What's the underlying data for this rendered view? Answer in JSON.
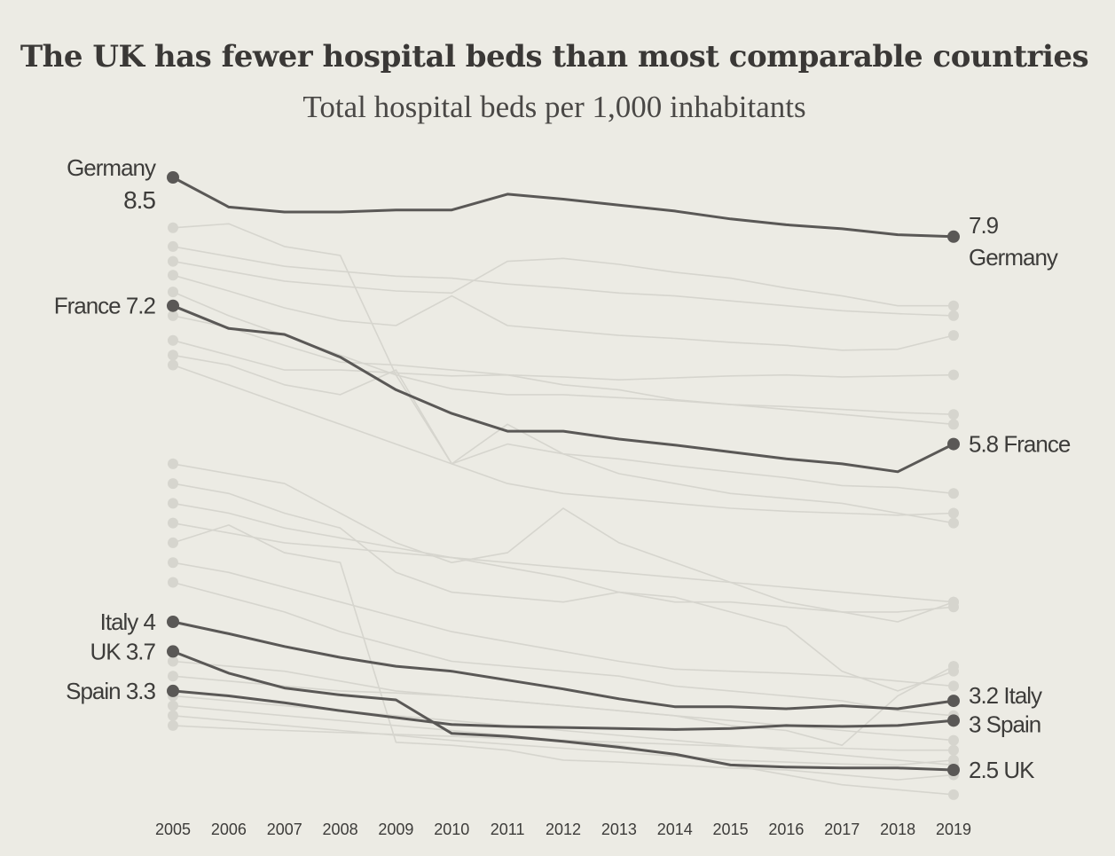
{
  "chart_data": {
    "type": "line",
    "title": "The UK has fewer hospital beds than most comparable countries",
    "subtitle": "Total hospital beds per 1,000 inhabitants",
    "x": [
      "2005",
      "2006",
      "2007",
      "2008",
      "2009",
      "2010",
      "2011",
      "2012",
      "2013",
      "2014",
      "2015",
      "2016",
      "2017",
      "2018",
      "2019"
    ],
    "ylim": [
      2.0,
      8.6
    ],
    "grid": false,
    "highlight_color": "#5a5856",
    "background_color": "#d6d5ce",
    "series": [
      {
        "name": "Germany",
        "highlight": true,
        "values": [
          8.5,
          8.2,
          8.15,
          8.15,
          8.17,
          8.17,
          8.33,
          8.28,
          8.22,
          8.16,
          8.08,
          8.02,
          7.98,
          7.92,
          7.9
        ],
        "start_label": "Germany",
        "start_value_label": "8.5",
        "end_label": "7.9",
        "end_name_label": "Germany"
      },
      {
        "name": "France",
        "highlight": true,
        "values": [
          7.2,
          6.97,
          6.91,
          6.68,
          6.35,
          6.11,
          5.93,
          5.93,
          5.85,
          5.79,
          5.72,
          5.65,
          5.6,
          5.52,
          5.8
        ],
        "start_label": "France 7.2",
        "end_label": "5.8 France"
      },
      {
        "name": "Italy",
        "highlight": true,
        "values": [
          4.0,
          3.88,
          3.75,
          3.64,
          3.55,
          3.5,
          3.41,
          3.32,
          3.22,
          3.14,
          3.14,
          3.12,
          3.15,
          3.12,
          3.2
        ],
        "start_label": "Italy 4",
        "end_label": "3.2 Italy"
      },
      {
        "name": "UK",
        "highlight": true,
        "values": [
          3.7,
          3.48,
          3.33,
          3.26,
          3.21,
          2.87,
          2.84,
          2.79,
          2.73,
          2.66,
          2.55,
          2.53,
          2.52,
          2.52,
          2.5
        ],
        "start_label": "UK 3.7",
        "end_label": "2.5 UK"
      },
      {
        "name": "Spain",
        "highlight": true,
        "values": [
          3.3,
          3.25,
          3.18,
          3.1,
          3.03,
          2.96,
          2.94,
          2.93,
          2.92,
          2.91,
          2.92,
          2.95,
          2.94,
          2.95,
          3.0
        ],
        "start_label": "Spain 3.3",
        "end_label": "3 Spain"
      },
      {
        "values": [
          7.99,
          8.03,
          7.8,
          7.71,
          6.5,
          5.6,
          5.8,
          5.7,
          5.65,
          5.58,
          5.52,
          5.46,
          5.38,
          5.36,
          5.3
        ]
      },
      {
        "values": [
          7.8,
          7.7,
          7.6,
          7.55,
          7.5,
          7.48,
          7.42,
          7.38,
          7.33,
          7.3,
          7.25,
          7.2,
          7.15,
          7.12,
          7.1
        ]
      },
      {
        "values": [
          7.65,
          7.55,
          7.45,
          7.4,
          7.35,
          7.33,
          7.65,
          7.68,
          7.62,
          7.54,
          7.48,
          7.38,
          7.3,
          7.2,
          7.2
        ]
      },
      {
        "values": [
          7.51,
          7.35,
          7.18,
          7.05,
          7.0,
          7.3,
          7.0,
          6.95,
          6.9,
          6.87,
          6.83,
          6.8,
          6.75,
          6.76,
          6.9
        ]
      },
      {
        "values": [
          7.34,
          7.1,
          6.9,
          6.7,
          6.5,
          6.36,
          6.3,
          6.3,
          6.27,
          6.24,
          6.2,
          6.18,
          6.15,
          6.12,
          6.1
        ]
      },
      {
        "values": [
          7.1,
          6.98,
          6.8,
          6.63,
          6.6,
          6.55,
          6.5,
          6.4,
          6.35,
          6.25,
          6.2,
          6.15,
          6.1,
          6.05,
          6.0
        ]
      },
      {
        "values": [
          6.85,
          6.7,
          6.55,
          6.55,
          6.52,
          6.49,
          6.5,
          6.48,
          6.45,
          6.47,
          6.49,
          6.5,
          6.48,
          6.49,
          6.5
        ]
      },
      {
        "values": [
          6.7,
          6.6,
          6.4,
          6.3,
          6.55,
          5.6,
          6.0,
          5.7,
          5.5,
          5.4,
          5.3,
          5.25,
          5.2,
          5.1,
          5.0
        ]
      },
      {
        "values": [
          6.6,
          6.4,
          6.2,
          6.0,
          5.8,
          5.6,
          5.4,
          5.3,
          5.25,
          5.2,
          5.15,
          5.12,
          5.1,
          5.08,
          5.1
        ]
      },
      {
        "values": [
          5.6,
          5.5,
          5.4,
          5.1,
          4.8,
          4.6,
          4.7,
          5.15,
          4.8,
          4.6,
          4.4,
          4.2,
          4.1,
          4.0,
          4.2
        ]
      },
      {
        "values": [
          5.4,
          5.3,
          5.1,
          4.95,
          4.5,
          4.3,
          4.25,
          4.2,
          4.3,
          4.2,
          4.2,
          4.15,
          4.1,
          4.1,
          4.15
        ]
      },
      {
        "values": [
          5.2,
          5.1,
          4.95,
          4.85,
          4.75,
          4.65,
          4.55,
          4.45,
          4.3,
          4.25,
          4.1,
          3.95,
          3.5,
          3.3,
          3.5
        ]
      },
      {
        "values": [
          5.0,
          4.9,
          4.8,
          4.75,
          4.7,
          4.65,
          4.6,
          4.55,
          4.5,
          4.45,
          4.4,
          4.35,
          4.3,
          4.25,
          4.2
        ]
      },
      {
        "values": [
          4.8,
          4.98,
          4.7,
          4.6,
          2.78,
          2.75,
          2.7,
          2.6,
          2.58,
          2.55,
          2.52,
          2.5,
          2.45,
          2.4,
          2.45
        ]
      },
      {
        "values": [
          4.6,
          4.5,
          4.35,
          4.2,
          4.05,
          3.9,
          3.8,
          3.7,
          3.6,
          3.52,
          3.5,
          3.48,
          3.45,
          3.4,
          3.35
        ]
      },
      {
        "values": [
          4.4,
          4.25,
          4.1,
          3.9,
          3.75,
          3.6,
          3.55,
          3.5,
          3.45,
          3.35,
          3.3,
          3.25,
          3.2,
          3.1,
          3.05
        ]
      },
      {
        "values": [
          3.6,
          3.55,
          3.5,
          3.4,
          3.3,
          3.25,
          3.2,
          3.15,
          3.1,
          3.05,
          2.95,
          2.9,
          2.75,
          3.25,
          3.55
        ]
      },
      {
        "values": [
          3.45,
          3.4,
          3.35,
          3.3,
          3.28,
          3.25,
          3.2,
          3.15,
          3.1,
          3.05,
          3.0,
          2.95,
          2.9,
          2.85,
          2.8
        ]
      },
      {
        "values": [
          3.25,
          3.2,
          3.15,
          3.1,
          3.05,
          3.0,
          2.95,
          2.9,
          2.85,
          2.8,
          2.75,
          2.7,
          2.65,
          2.6,
          2.55
        ]
      },
      {
        "values": [
          3.15,
          3.1,
          3.05,
          3.0,
          2.95,
          2.9,
          2.85,
          2.8,
          2.75,
          2.65,
          2.55,
          2.45,
          2.35,
          2.3,
          2.25
        ]
      },
      {
        "values": [
          3.05,
          3.0,
          2.95,
          2.9,
          2.85,
          2.8,
          2.76,
          2.72,
          2.68,
          2.64,
          2.6,
          2.58,
          2.56,
          2.55,
          2.6
        ]
      },
      {
        "values": [
          2.95,
          2.92,
          2.9,
          2.88,
          2.86,
          2.84,
          2.82,
          2.8,
          2.78,
          2.76,
          2.74,
          2.72,
          2.72,
          2.7,
          2.7
        ]
      }
    ]
  }
}
